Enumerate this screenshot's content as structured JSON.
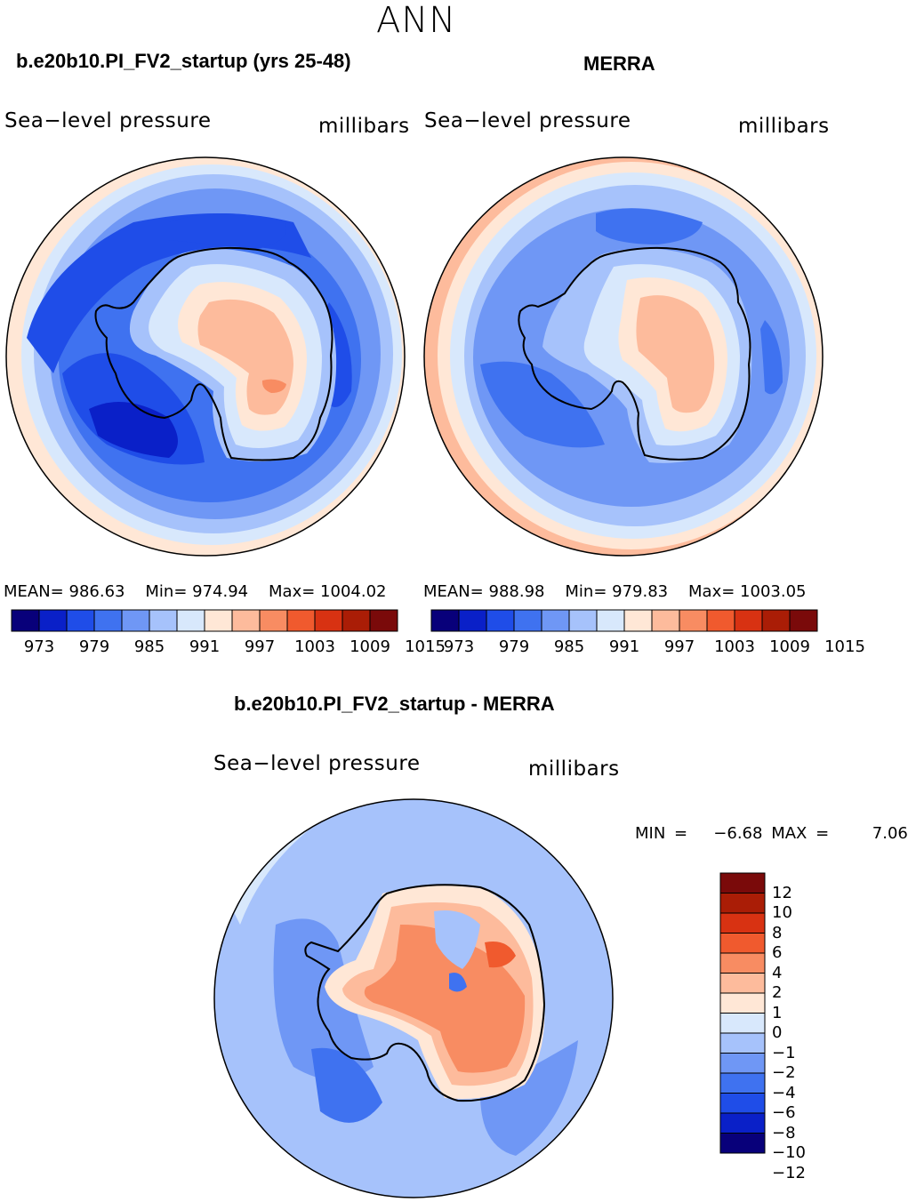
{
  "season": "ANN",
  "colors": {
    "abs_palette": [
      "#08007a",
      "#0a20c8",
      "#1f4de8",
      "#3f72f0",
      "#6f97f5",
      "#a6c2fb",
      "#d8e8fc",
      "#ffe7d6",
      "#fdbb9c",
      "#f88c62",
      "#f05a2e",
      "#d83212",
      "#aa1d06",
      "#7a0a0a"
    ],
    "diff_palette": [
      "#08007a",
      "#0a20c8",
      "#1f4de8",
      "#3f72f0",
      "#6f97f5",
      "#a6c2fb",
      "#d8e8fc",
      "#ffe7d6",
      "#fdbb9c",
      "#f88c62",
      "#f05a2e",
      "#d83212",
      "#aa1d06",
      "#7a0a0a"
    ]
  },
  "chart_data": [
    {
      "type": "heatmap",
      "title": "b.e20b10.PI_FV2_startup (yrs 25-48)",
      "variable": "Sea−level pressure",
      "units": "millibars",
      "stats": {
        "mean_label": "MEAN=",
        "mean": "986.63",
        "min_label": "Min=",
        "min": "974.94",
        "max_label": "Max=",
        "max": "1004.02"
      },
      "levels": [
        973,
        976,
        979,
        982,
        985,
        988,
        991,
        994,
        997,
        1000,
        1003,
        1006,
        1009,
        1012,
        1015
      ],
      "tick_labels": [
        "973",
        "979",
        "985",
        "991",
        "997",
        "1003",
        "1009",
        "1015"
      ]
    },
    {
      "type": "heatmap",
      "title": "MERRA",
      "variable": "Sea−level pressure",
      "units": "millibars",
      "stats": {
        "mean_label": "MEAN=",
        "mean": "988.98",
        "min_label": "Min=",
        "min": "979.83",
        "max_label": "Max=",
        "max": "1003.05"
      },
      "levels": [
        973,
        976,
        979,
        982,
        985,
        988,
        991,
        994,
        997,
        1000,
        1003,
        1006,
        1009,
        1012,
        1015
      ],
      "tick_labels": [
        "973",
        "979",
        "985",
        "991",
        "997",
        "1003",
        "1009",
        "1015"
      ]
    },
    {
      "type": "heatmap",
      "title": "b.e20b10.PI_FV2_startup - MERRA",
      "variable": "Sea−level pressure",
      "units": "millibars",
      "stats": {
        "min_label": "MIN =",
        "min": "−6.68",
        "max_label": "MAX =",
        "max": "7.06"
      },
      "levels": [
        -12,
        -10,
        -8,
        -6,
        -4,
        -2,
        -1,
        0,
        1,
        2,
        4,
        6,
        8,
        10,
        12
      ],
      "tick_labels": [
        "12",
        "10",
        "8",
        "6",
        "4",
        "2",
        "1",
        "0",
        "−1",
        "−2",
        "−4",
        "−6",
        "−8",
        "−10",
        "−12"
      ]
    }
  ]
}
